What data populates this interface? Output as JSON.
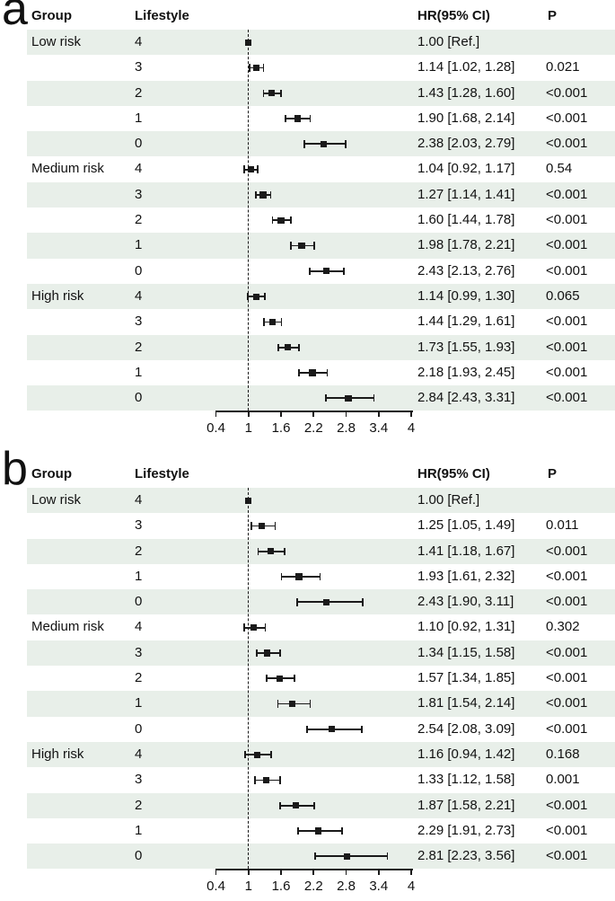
{
  "figure": {
    "background": "#ffffff",
    "stripe_color": "#e8efe9",
    "ink_color": "#1a1a1a"
  },
  "chart_data": [
    {
      "type": "scatter",
      "subtype": "forest-plot",
      "label": "a",
      "columns": {
        "group": "Group",
        "lifestyle": "Lifestyle",
        "hr": "HR(95% CI)",
        "p": "P"
      },
      "x_axis": {
        "range": [
          0.4,
          4
        ],
        "reference_line": 1,
        "tick_labels": [
          "0.4",
          "1",
          "1.6",
          "2.2",
          "2.8",
          "3.4",
          "4"
        ],
        "grid": false
      },
      "rows": [
        {
          "group": "Low risk",
          "lifestyle": "4",
          "hr": 1.0,
          "ci": null,
          "hr_text": "1.00 [Ref.]",
          "p": ""
        },
        {
          "group": "",
          "lifestyle": "3",
          "hr": 1.14,
          "ci": [
            1.02,
            1.28
          ],
          "hr_text": "1.14 [1.02, 1.28]",
          "p": "0.021"
        },
        {
          "group": "",
          "lifestyle": "2",
          "hr": 1.43,
          "ci": [
            1.28,
            1.6
          ],
          "hr_text": "1.43 [1.28, 1.60]",
          "p": "<0.001"
        },
        {
          "group": "",
          "lifestyle": "1",
          "hr": 1.9,
          "ci": [
            1.68,
            2.14
          ],
          "hr_text": "1.90 [1.68, 2.14]",
          "p": "<0.001"
        },
        {
          "group": "",
          "lifestyle": "0",
          "hr": 2.38,
          "ci": [
            2.03,
            2.79
          ],
          "hr_text": "2.38 [2.03, 2.79]",
          "p": "<0.001"
        },
        {
          "group": "Medium risk",
          "lifestyle": "4",
          "hr": 1.04,
          "ci": [
            0.92,
            1.17
          ],
          "hr_text": "1.04 [0.92, 1.17]",
          "p": "0.54"
        },
        {
          "group": "",
          "lifestyle": "3",
          "hr": 1.27,
          "ci": [
            1.14,
            1.41
          ],
          "hr_text": "1.27 [1.14, 1.41]",
          "p": "<0.001"
        },
        {
          "group": "",
          "lifestyle": "2",
          "hr": 1.6,
          "ci": [
            1.44,
            1.78
          ],
          "hr_text": "1.60 [1.44, 1.78]",
          "p": "<0.001"
        },
        {
          "group": "",
          "lifestyle": "1",
          "hr": 1.98,
          "ci": [
            1.78,
            2.21
          ],
          "hr_text": "1.98 [1.78, 2.21]",
          "p": "<0.001"
        },
        {
          "group": "",
          "lifestyle": "0",
          "hr": 2.43,
          "ci": [
            2.13,
            2.76
          ],
          "hr_text": "2.43 [2.13, 2.76]",
          "p": "<0.001"
        },
        {
          "group": "High risk",
          "lifestyle": "4",
          "hr": 1.14,
          "ci": [
            0.99,
            1.3
          ],
          "hr_text": "1.14 [0.99, 1.30]",
          "p": "0.065"
        },
        {
          "group": "",
          "lifestyle": "3",
          "hr": 1.44,
          "ci": [
            1.29,
            1.61
          ],
          "hr_text": "1.44 [1.29, 1.61]",
          "p": "<0.001"
        },
        {
          "group": "",
          "lifestyle": "2",
          "hr": 1.73,
          "ci": [
            1.55,
            1.93
          ],
          "hr_text": "1.73 [1.55, 1.93]",
          "p": "<0.001"
        },
        {
          "group": "",
          "lifestyle": "1",
          "hr": 2.18,
          "ci": [
            1.93,
            2.45
          ],
          "hr_text": "2.18 [1.93, 2.45]",
          "p": "<0.001"
        },
        {
          "group": "",
          "lifestyle": "0",
          "hr": 2.84,
          "ci": [
            2.43,
            3.31
          ],
          "hr_text": "2.84 [2.43, 3.31]",
          "p": "<0.001"
        }
      ]
    },
    {
      "type": "scatter",
      "subtype": "forest-plot",
      "label": "b",
      "columns": {
        "group": "Group",
        "lifestyle": "Lifestyle",
        "hr": "HR(95% CI)",
        "p": "P"
      },
      "x_axis": {
        "range": [
          0.4,
          4
        ],
        "reference_line": 1,
        "tick_labels": [
          "0.4",
          "1",
          "1.6",
          "2.2",
          "2.8",
          "3.4",
          "4"
        ],
        "grid": false
      },
      "rows": [
        {
          "group": "Low risk",
          "lifestyle": "4",
          "hr": 1.0,
          "ci": null,
          "hr_text": "1.00 [Ref.]",
          "p": ""
        },
        {
          "group": "",
          "lifestyle": "3",
          "hr": 1.25,
          "ci": [
            1.05,
            1.49
          ],
          "hr_text": "1.25 [1.05, 1.49]",
          "p": "0.011"
        },
        {
          "group": "",
          "lifestyle": "2",
          "hr": 1.41,
          "ci": [
            1.18,
            1.67
          ],
          "hr_text": "1.41 [1.18, 1.67]",
          "p": "<0.001"
        },
        {
          "group": "",
          "lifestyle": "1",
          "hr": 1.93,
          "ci": [
            1.61,
            2.32
          ],
          "hr_text": "1.93 [1.61, 2.32]",
          "p": "<0.001"
        },
        {
          "group": "",
          "lifestyle": "0",
          "hr": 2.43,
          "ci": [
            1.9,
            3.11
          ],
          "hr_text": "2.43 [1.90, 3.11]",
          "p": "<0.001"
        },
        {
          "group": "Medium risk",
          "lifestyle": "4",
          "hr": 1.1,
          "ci": [
            0.92,
            1.31
          ],
          "hr_text": "1.10 [0.92, 1.31]",
          "p": "0.302"
        },
        {
          "group": "",
          "lifestyle": "3",
          "hr": 1.34,
          "ci": [
            1.15,
            1.58
          ],
          "hr_text": "1.34 [1.15, 1.58]",
          "p": "<0.001"
        },
        {
          "group": "",
          "lifestyle": "2",
          "hr": 1.57,
          "ci": [
            1.34,
            1.85
          ],
          "hr_text": "1.57 [1.34, 1.85]",
          "p": "<0.001"
        },
        {
          "group": "",
          "lifestyle": "1",
          "hr": 1.81,
          "ci": [
            1.54,
            2.14
          ],
          "hr_text": "1.81 [1.54, 2.14]",
          "p": "<0.001"
        },
        {
          "group": "",
          "lifestyle": "0",
          "hr": 2.54,
          "ci": [
            2.08,
            3.09
          ],
          "hr_text": "2.54 [2.08, 3.09]",
          "p": "<0.001"
        },
        {
          "group": "High risk",
          "lifestyle": "4",
          "hr": 1.16,
          "ci": [
            0.94,
            1.42
          ],
          "hr_text": "1.16 [0.94, 1.42]",
          "p": "0.168"
        },
        {
          "group": "",
          "lifestyle": "3",
          "hr": 1.33,
          "ci": [
            1.12,
            1.58
          ],
          "hr_text": "1.33 [1.12, 1.58]",
          "p": "0.001"
        },
        {
          "group": "",
          "lifestyle": "2",
          "hr": 1.87,
          "ci": [
            1.58,
            2.21
          ],
          "hr_text": "1.87 [1.58, 2.21]",
          "p": "<0.001"
        },
        {
          "group": "",
          "lifestyle": "1",
          "hr": 2.29,
          "ci": [
            1.91,
            2.73
          ],
          "hr_text": "2.29 [1.91, 2.73]",
          "p": "<0.001"
        },
        {
          "group": "",
          "lifestyle": "0",
          "hr": 2.81,
          "ci": [
            2.23,
            3.56
          ],
          "hr_text": "2.81 [2.23, 3.56]",
          "p": "<0.001"
        }
      ]
    }
  ]
}
